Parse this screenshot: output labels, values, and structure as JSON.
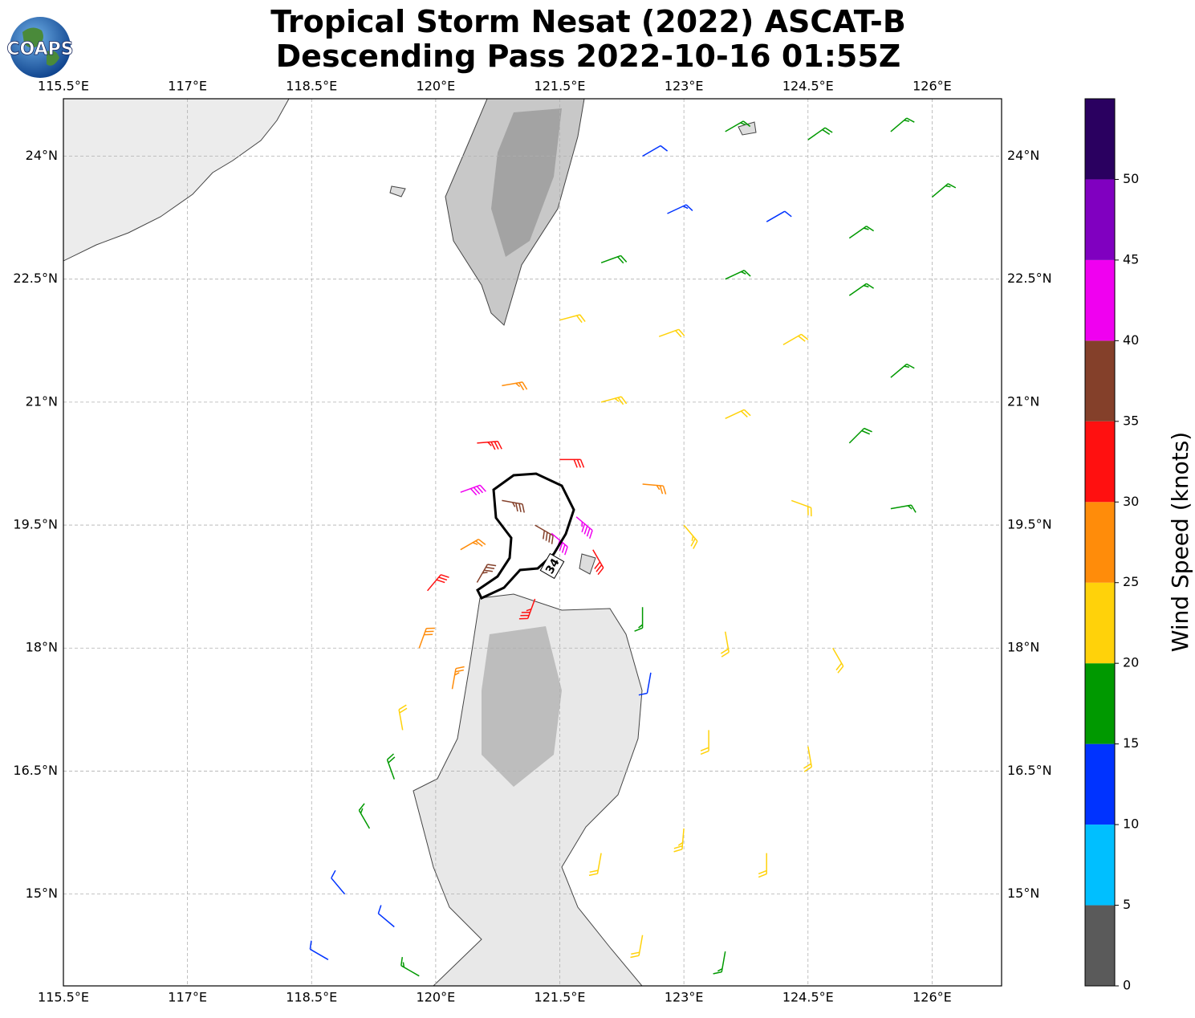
{
  "header": {
    "title": "Tropical Storm Nesat (2022) ASCAT-B",
    "subtitle": "Descending Pass 2022-10-16 01:55Z",
    "logo_text": "COAPS"
  },
  "map": {
    "xlim": [
      115.5,
      126.84
    ],
    "ylim": [
      13.88,
      24.7
    ],
    "xticks": [
      {
        "value": 115.5,
        "label": "115.5°E"
      },
      {
        "value": 117,
        "label": "117°E"
      },
      {
        "value": 118.5,
        "label": "118.5°E"
      },
      {
        "value": 120,
        "label": "120°E"
      },
      {
        "value": 121.5,
        "label": "121.5°E"
      },
      {
        "value": 123,
        "label": "123°E"
      },
      {
        "value": 124.5,
        "label": "124.5°E"
      },
      {
        "value": 126,
        "label": "126°E"
      }
    ],
    "yticks": [
      {
        "value": 15,
        "label": "15°N"
      },
      {
        "value": 16.5,
        "label": "16.5°N"
      },
      {
        "value": 18,
        "label": "18°N"
      },
      {
        "value": 19.5,
        "label": "19.5°N"
      },
      {
        "value": 21,
        "label": "21°N"
      },
      {
        "value": 22.5,
        "label": "22.5°N"
      },
      {
        "value": 24,
        "label": "24°N"
      }
    ],
    "grid": true,
    "contour": 34,
    "barbs": {
      "lon": [
        122.5,
        123.5,
        124.5,
        125.5,
        122.8,
        124.0,
        125.0,
        126.0,
        122.0,
        123.5,
        125.0,
        121.5,
        122.7,
        124.2,
        125.5,
        120.8,
        122.0,
        123.5,
        125.0,
        120.5,
        121.5,
        122.5,
        120.8,
        121.2,
        121.4,
        121.9,
        123.0,
        124.3,
        125.5,
        120.3,
        119.9,
        120.5,
        121.2,
        122.5,
        123.5,
        124.8,
        119.8,
        120.2,
        119.6,
        122.6,
        123.3,
        124.5,
        119.5,
        119.2,
        122.0,
        123.0,
        124.0,
        118.9,
        119.5,
        118.7,
        119.8,
        122.5,
        123.5,
        121.7,
        120.3
      ],
      "lat": [
        24.0,
        24.3,
        24.2,
        24.3,
        23.3,
        23.2,
        23.0,
        23.5,
        22.7,
        22.5,
        22.3,
        22.0,
        21.8,
        21.7,
        21.3,
        21.2,
        21.0,
        20.8,
        20.5,
        20.5,
        20.3,
        20.0,
        19.8,
        19.5,
        19.4,
        19.2,
        19.5,
        19.8,
        19.7,
        19.2,
        18.7,
        18.8,
        18.6,
        18.5,
        18.2,
        18.0,
        18.0,
        17.5,
        17.0,
        17.7,
        17.0,
        16.8,
        16.4,
        15.8,
        15.5,
        15.8,
        15.5,
        15.0,
        14.6,
        14.2,
        14.0,
        14.5,
        14.3,
        19.6,
        19.9
      ],
      "speed": [
        12,
        17,
        18,
        17,
        13,
        12,
        17,
        16,
        18,
        17,
        16,
        22,
        22,
        20,
        17,
        27,
        23,
        22,
        18,
        33,
        32,
        26,
        37,
        38,
        42,
        30,
        23,
        22,
        17,
        27,
        32,
        36,
        33,
        17,
        22,
        22,
        28,
        27,
        22,
        12,
        22,
        22,
        18,
        17,
        22,
        23,
        22,
        12,
        12,
        12,
        17,
        22,
        17,
        43,
        41
      ],
      "direction": [
        60,
        60,
        55,
        50,
        65,
        60,
        55,
        50,
        70,
        65,
        55,
        75,
        70,
        60,
        50,
        80,
        75,
        65,
        45,
        85,
        90,
        95,
        100,
        120,
        130,
        150,
        140,
        110,
        80,
        60,
        40,
        30,
        200,
        180,
        170,
        150,
        20,
        10,
        350,
        190,
        180,
        170,
        340,
        330,
        190,
        185,
        180,
        320,
        310,
        300,
        300,
        190,
        190,
        130,
        70
      ]
    }
  },
  "colorbar": {
    "label": "Wind Speed (knots)",
    "clim": [
      0,
      55
    ],
    "ticks": [
      0,
      5,
      10,
      15,
      20,
      25,
      30,
      35,
      40,
      45,
      50
    ],
    "colors": [
      "#5a5a5a",
      "#00bfff",
      "#0033ff",
      "#009900",
      "#ffd20a",
      "#ff8c0a",
      "#ff1010",
      "#84402a",
      "#f000f0",
      "#8000c0",
      "#2a0060"
    ]
  }
}
